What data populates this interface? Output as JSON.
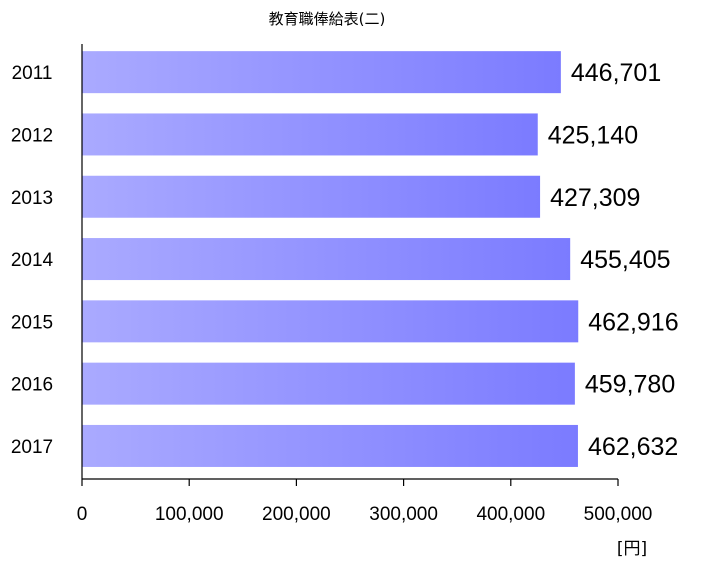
{
  "chart_data": {
    "type": "bar",
    "orientation": "horizontal",
    "title": "教育職俸給表(二)",
    "categories": [
      "2011",
      "2012",
      "2013",
      "2014",
      "2015",
      "2016",
      "2017"
    ],
    "values": [
      446701,
      425140,
      427309,
      455405,
      462916,
      459780,
      462632
    ],
    "value_labels": [
      "446,701",
      "425,140",
      "427,309",
      "455,405",
      "462,916",
      "459,780",
      "462,632"
    ],
    "xlim": [
      0,
      500000
    ],
    "xticks": [
      0,
      100000,
      200000,
      300000,
      400000,
      500000
    ],
    "xtick_labels": [
      "0",
      "100,000",
      "200,000",
      "300,000",
      "400,000",
      "500,000"
    ],
    "xunit": "[円]",
    "grid": false,
    "colors": {
      "bar_start": "#aaaaff",
      "bar_end": "#7b7bff",
      "axis": "#000000"
    }
  }
}
